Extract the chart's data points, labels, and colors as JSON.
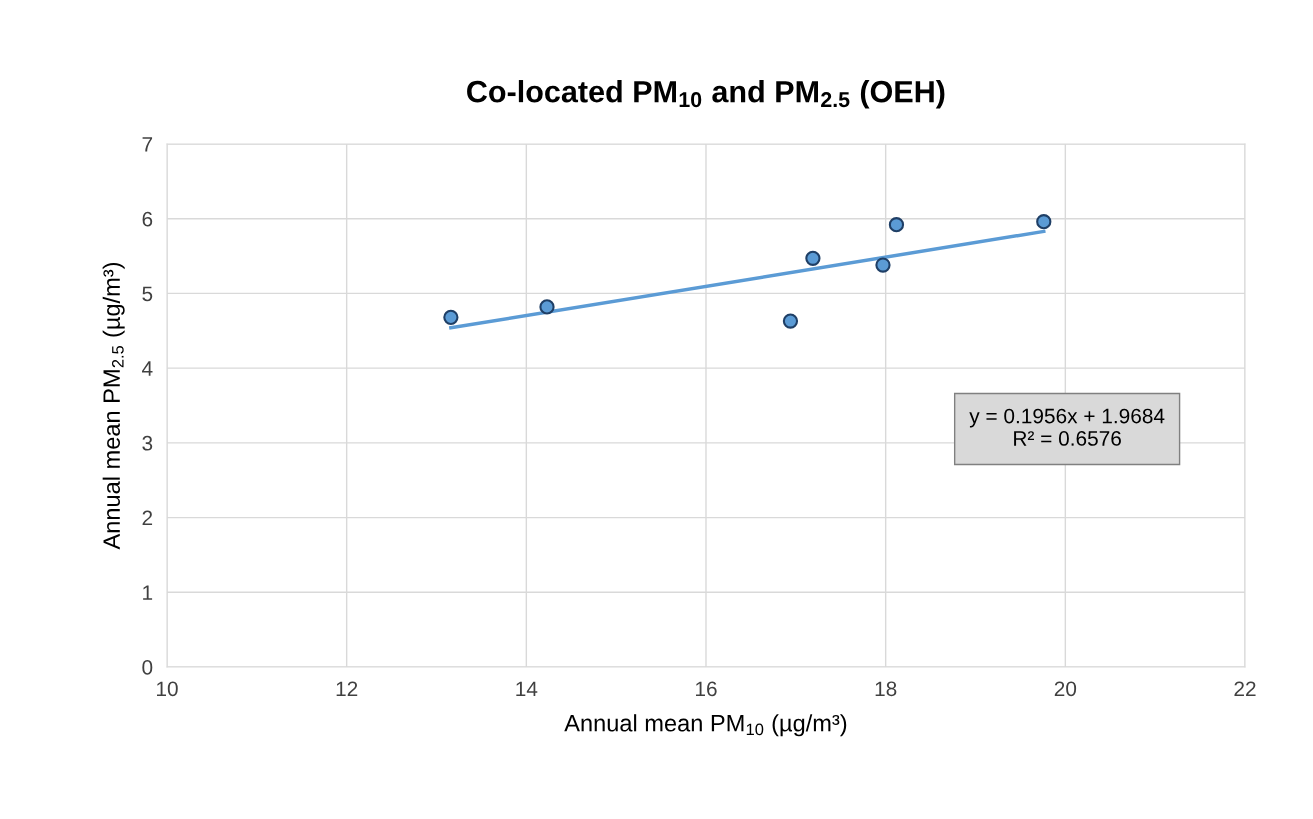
{
  "chart_data": {
    "type": "scatter",
    "title": "Co-located PM$_{10}$ and PM$_{2.5}$ (OEH)",
    "xlabel": "Annual mean PM$_{10}$ (µg/m³)",
    "ylabel": "Annual mean PM$_{2.5}$ (µg/m³)",
    "series": [
      {
        "color": "#5b9bd5",
        "x": [
          13.16,
          14.23,
          16.94,
          17.19,
          17.97,
          18.12,
          19.76
        ],
        "values": [
          4.68,
          4.82,
          4.63,
          5.47,
          5.38,
          5.92,
          5.96
        ]
      },
      {
        "type": "line",
        "color": "#5b9bd5",
        "x": [
          13.16,
          19.76
        ],
        "values": [
          4.54,
          5.83
        ],
        "marker": "none"
      }
    ],
    "marker": "circle",
    "line_style": "solid",
    "xlim": [
      10,
      22
    ],
    "xticks": [
      10,
      12,
      14,
      16,
      18,
      20,
      22
    ],
    "ylim": [
      0,
      7
    ],
    "yticks": [
      0,
      1,
      2,
      3,
      4,
      5,
      6,
      7
    ],
    "grid": true,
    "legend": false,
    "annotations": [
      "y = 0.1956x + 1.9684\nR² = 0.6576"
    ]
  }
}
